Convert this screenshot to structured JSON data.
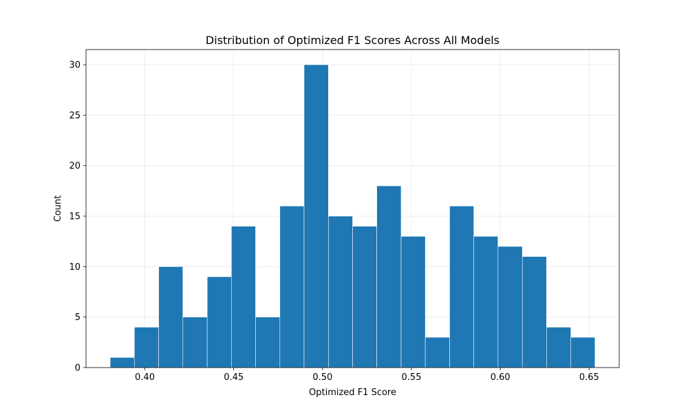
{
  "chart_data": {
    "type": "bar",
    "title": "Distribution of Optimized F1 Scores Across All Models",
    "xlabel": "Optimized F1 Score",
    "ylabel": "Count",
    "bin_edges": [
      0.3805,
      0.3941,
      0.4078,
      0.4214,
      0.4351,
      0.4487,
      0.4623,
      0.476,
      0.4896,
      0.5033,
      0.5169,
      0.5305,
      0.5442,
      0.5578,
      0.5715,
      0.5851,
      0.5987,
      0.6124,
      0.626,
      0.6397,
      0.6533
    ],
    "values": [
      1,
      4,
      10,
      5,
      9,
      14,
      5,
      16,
      30,
      15,
      14,
      18,
      13,
      3,
      16,
      13,
      12,
      11,
      4,
      3
    ],
    "xlim": [
      0.3669,
      0.6669
    ],
    "ylim": [
      0,
      31.5
    ],
    "xticks": [
      0.4,
      0.45,
      0.5,
      0.55,
      0.6,
      0.65
    ],
    "xtick_labels": [
      "0.40",
      "0.45",
      "0.50",
      "0.55",
      "0.60",
      "0.65"
    ],
    "yticks": [
      0,
      5,
      10,
      15,
      20,
      25,
      30
    ],
    "ytick_labels": [
      "0",
      "5",
      "10",
      "15",
      "20",
      "25",
      "30"
    ],
    "grid": true,
    "bar_color": "#1f77b4",
    "bar_edge_color": "#ffffff"
  }
}
